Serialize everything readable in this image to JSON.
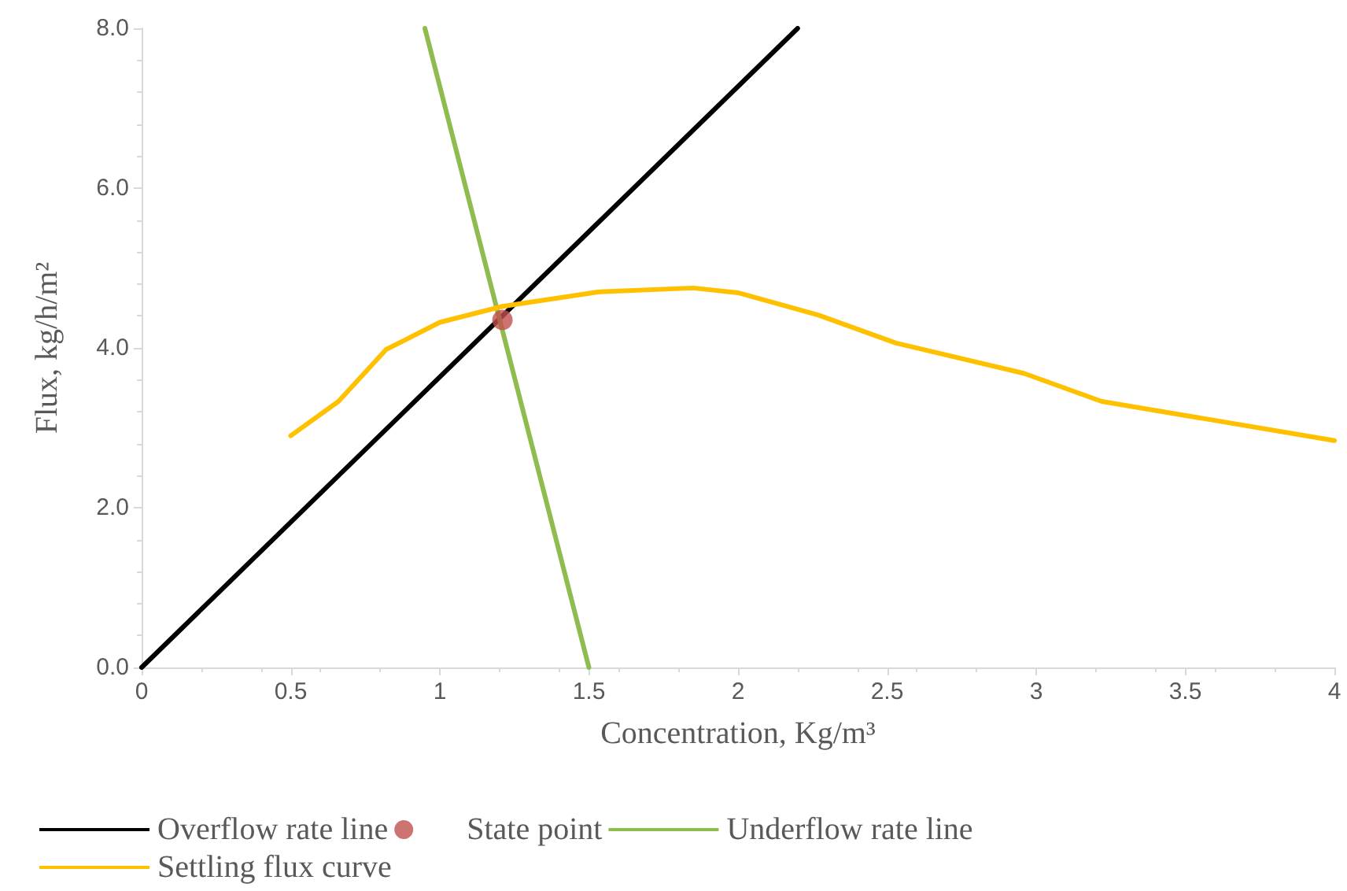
{
  "chart_data": {
    "type": "line",
    "xlabel": "Concentration, Kg/m³",
    "ylabel": "Flux, kg/h/m²",
    "xlim": [
      0,
      4
    ],
    "xticks": [
      0,
      0.5,
      1,
      1.5,
      2,
      2.5,
      3,
      3.5,
      4
    ],
    "ylim": [
      0,
      8
    ],
    "yticks": [
      {
        "value": 0,
        "label": "0.0"
      },
      {
        "value": 2,
        "label": "2.0"
      },
      {
        "value": 4,
        "label": "4.0"
      },
      {
        "value": 6,
        "label": "6.0"
      },
      {
        "value": 8,
        "label": "8.0"
      }
    ],
    "grid": false,
    "legend": "bottom",
    "marker": "none",
    "line_style": "solid",
    "series": [
      {
        "name": "Overflow rate line",
        "color": "#000000",
        "x": [
          0,
          2.2
        ],
        "values": [
          0,
          8
        ]
      },
      {
        "name": "State point",
        "type": "scatter",
        "marker": "circle",
        "color": "#c0504d",
        "x": [
          1.21
        ],
        "values": [
          4.35
        ]
      },
      {
        "name": "Underflow rate line",
        "color": "#8fbc4f",
        "x": [
          0.95,
          1.5
        ],
        "values": [
          8,
          0
        ]
      },
      {
        "name": "Settling flux curve",
        "color": "#ffc000",
        "x": [
          0.5,
          0.66,
          0.82,
          1.0,
          1.21,
          1.53,
          1.85,
          2.0,
          2.27,
          2.53,
          2.96,
          3.22,
          4.0
        ],
        "values": [
          2.9,
          3.33,
          3.98,
          4.32,
          4.52,
          4.7,
          4.75,
          4.69,
          4.41,
          4.06,
          3.68,
          3.33,
          2.84
        ]
      }
    ]
  }
}
